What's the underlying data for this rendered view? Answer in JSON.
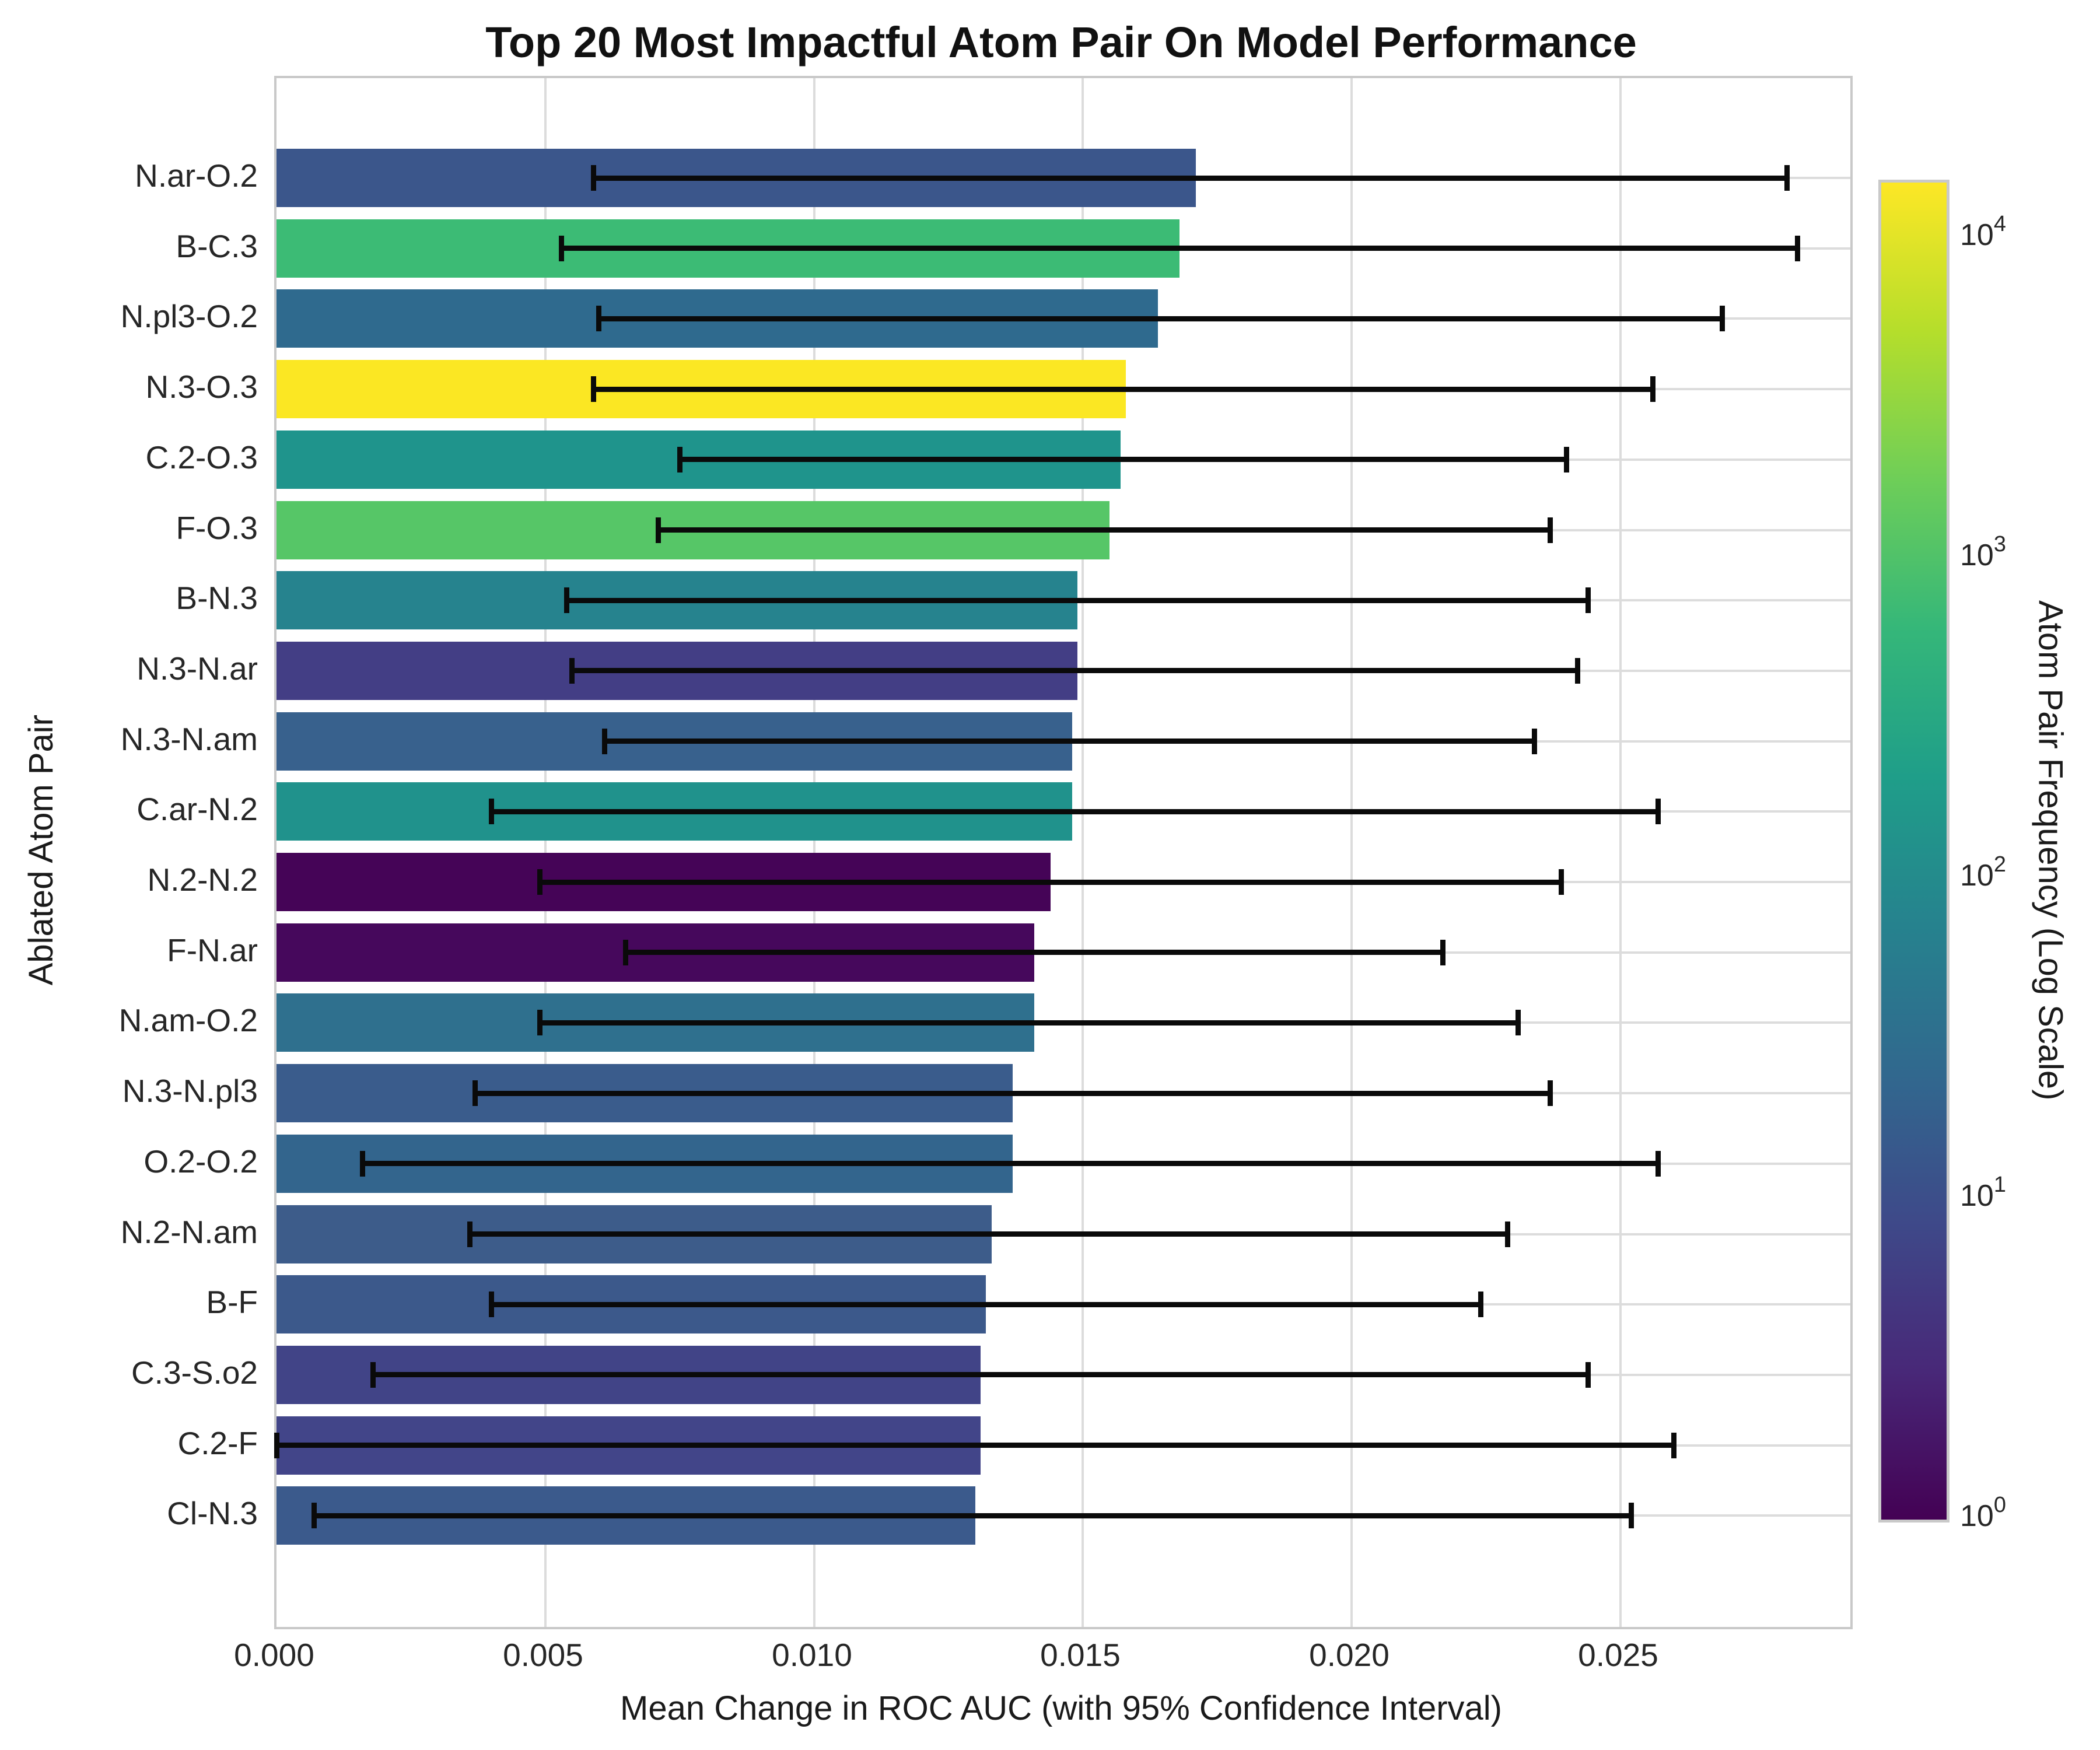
{
  "chart_data": {
    "type": "bar",
    "orientation": "horizontal",
    "title": "Top 20 Most Impactful Atom Pair On Model Performance",
    "xlabel": "Mean Change in ROC AUC (with 95% Confidence Interval)",
    "ylabel": "Ablated Atom Pair",
    "categories": [
      "N.ar-O.2",
      "B-C.3",
      "N.pl3-O.2",
      "N.3-O.3",
      "C.2-O.3",
      "F-O.3",
      "B-N.3",
      "N.3-N.ar",
      "N.3-N.am",
      "C.ar-N.2",
      "N.2-N.2",
      "F-N.ar",
      "N.am-O.2",
      "N.3-N.pl3",
      "O.2-O.2",
      "N.2-N.am",
      "B-F",
      "C.3-S.o2",
      "C.2-F",
      "Cl-N.3"
    ],
    "values": [
      0.0171,
      0.0168,
      0.0164,
      0.0158,
      0.0157,
      0.0155,
      0.0149,
      0.0149,
      0.0148,
      0.0148,
      0.0144,
      0.0141,
      0.0141,
      0.0137,
      0.0137,
      0.0133,
      0.0132,
      0.0131,
      0.0131,
      0.013
    ],
    "ci_low": [
      0.0059,
      0.0053,
      0.006,
      0.0059,
      0.0075,
      0.0071,
      0.0054,
      0.0055,
      0.0061,
      0.004,
      0.0049,
      0.0065,
      0.0049,
      0.0037,
      0.0016,
      0.0036,
      0.004,
      0.0018,
      0.0,
      0.0007
    ],
    "ci_high": [
      0.0281,
      0.0283,
      0.0269,
      0.0256,
      0.024,
      0.0237,
      0.0244,
      0.0242,
      0.0234,
      0.0257,
      0.0239,
      0.0217,
      0.0231,
      0.0237,
      0.0257,
      0.0229,
      0.0224,
      0.0244,
      0.026,
      0.0252
    ],
    "bar_colors": [
      "#3B568B",
      "#3CBB75",
      "#2F6A8E",
      "#FBE723",
      "#1F948C",
      "#56C667",
      "#26838E",
      "#433E85",
      "#38618D",
      "#20928C",
      "#450457",
      "#46085C",
      "#2F708E",
      "#3A5C8C",
      "#33658D",
      "#3D5C8A",
      "#3C598B",
      "#414487",
      "#424589",
      "#3B5A8C"
    ],
    "xlim": [
      0,
      0.0293
    ],
    "grid": true,
    "x_ticks": {
      "labels": [
        "0.000",
        "0.005",
        "0.010",
        "0.015",
        "0.020",
        "0.025"
      ],
      "values": [
        0,
        0.005,
        0.01,
        0.015,
        0.02,
        0.025
      ]
    },
    "colorbar": {
      "label": "Atom Pair Frequency (Log Scale)",
      "scale": "log",
      "ticks": [
        {
          "base": "10",
          "exp": "4"
        },
        {
          "base": "10",
          "exp": "3"
        },
        {
          "base": "10",
          "exp": "2"
        },
        {
          "base": "10",
          "exp": "1"
        },
        {
          "base": "10",
          "exp": "0"
        }
      ]
    }
  },
  "colors": {
    "grid": "#dcdcdc",
    "spine": "#c9c9c9",
    "error_bar": "#0a0a0a",
    "text": "#262626",
    "viridis_stops_top_to_bottom": [
      "#fde725",
      "#b5de2b",
      "#6ece58",
      "#35b779",
      "#1f9e89",
      "#26828e",
      "#31688e",
      "#3e4989",
      "#482878",
      "#440154"
    ]
  }
}
